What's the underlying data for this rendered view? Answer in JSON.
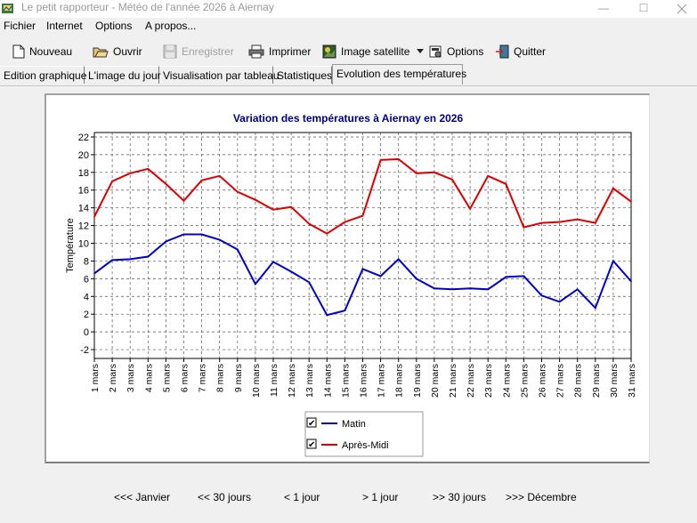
{
  "window": {
    "title": "Le petit rapporteur - Météo de l'année 2026 à Aiernay",
    "minimize": "—",
    "maximize": "☐"
  },
  "menu": [
    "Fichier",
    "Internet",
    "Options",
    "A propos..."
  ],
  "toolbar": {
    "new_label": "Nouveau",
    "open_label": "Ouvrir",
    "save_label": "Enregistrer",
    "print_label": "Imprimer",
    "satellite_label": "Image satellite",
    "options_label": "Options",
    "quit_label": "Quitter"
  },
  "tabs": [
    "Edition graphique",
    "L'image du jour",
    "Visualisation par tableau",
    "Statistiques",
    "Evolution des températures"
  ],
  "chart_data": {
    "type": "line",
    "title": "Variation des températures à Aiernay en 2026",
    "ylabel": "Température",
    "xlabel": "",
    "ylim": [
      -3,
      22.5
    ],
    "yticks": [
      -2,
      0,
      2,
      4,
      6,
      8,
      10,
      12,
      14,
      16,
      18,
      20,
      22
    ],
    "grid": true,
    "legend_position": "bottom",
    "categories": [
      "1 mars",
      "2 mars",
      "3 mars",
      "4 mars",
      "5 mars",
      "6 mars",
      "7 mars",
      "8 mars",
      "9 mars",
      "10 mars",
      "11 mars",
      "12 mars",
      "13 mars",
      "14 mars",
      "15 mars",
      "16 mars",
      "17 mars",
      "18 mars",
      "19 mars",
      "20 mars",
      "21 mars",
      "22 mars",
      "23 mars",
      "24 mars",
      "25 mars",
      "26 mars",
      "27 mars",
      "28 mars",
      "29 mars",
      "30 mars",
      "31 mars"
    ],
    "series": [
      {
        "name": "Matin",
        "color": "#0000cc",
        "values": [
          6.6,
          8.1,
          8.2,
          8.5,
          10.2,
          11.0,
          11.0,
          10.4,
          9.3,
          5.4,
          7.9,
          6.8,
          5.6,
          1.9,
          2.4,
          7.1,
          6.3,
          8.2,
          6.0,
          4.9,
          4.8,
          4.9,
          4.8,
          6.2,
          6.3,
          4.1,
          3.4,
          4.8,
          2.7,
          8.0,
          5.7
        ]
      },
      {
        "name": "Après-Midi",
        "color": "#dd0000",
        "values": [
          13.0,
          17.0,
          17.9,
          18.4,
          16.7,
          14.8,
          17.1,
          17.6,
          15.8,
          14.9,
          13.8,
          14.1,
          12.2,
          11.1,
          12.4,
          13.1,
          19.4,
          19.5,
          17.9,
          18.0,
          17.2,
          13.9,
          17.6,
          16.7,
          11.8,
          12.3,
          12.4,
          12.7,
          12.3,
          16.2,
          14.7
        ]
      }
    ]
  },
  "legend": {
    "matin": {
      "label": "Matin",
      "checked": "✔"
    },
    "apres_midi": {
      "label": "Après-Midi",
      "checked": "✔"
    }
  },
  "nav": {
    "janvier": "<<< Janvier",
    "back30": "<< 30 jours",
    "back1": "< 1 jour",
    "fwd1": "> 1 jour",
    "fwd30": ">> 30 jours",
    "decembre": ">>> Décembre"
  }
}
